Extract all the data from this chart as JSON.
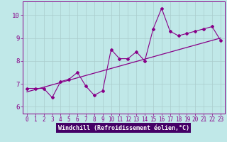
{
  "title": "",
  "xlabel": "Windchill (Refroidissement éolien,°C)",
  "ylabel": "",
  "background_color": "#c0e8e8",
  "axis_bg_color": "#c0e8e8",
  "bottom_bar_color": "#440066",
  "grid_color": "#aacccc",
  "line_color": "#880088",
  "x_data": [
    0,
    1,
    2,
    3,
    4,
    5,
    6,
    7,
    8,
    9,
    10,
    11,
    12,
    13,
    14,
    15,
    16,
    17,
    18,
    19,
    20,
    21,
    22,
    23
  ],
  "y_data": [
    6.8,
    6.8,
    6.8,
    6.4,
    7.1,
    7.2,
    7.5,
    6.9,
    6.5,
    6.7,
    8.5,
    8.1,
    8.1,
    8.4,
    8.0,
    9.4,
    10.3,
    9.3,
    9.1,
    9.2,
    9.3,
    9.4,
    9.5,
    8.9
  ],
  "trend_x": [
    0,
    23
  ],
  "trend_y": [
    6.65,
    9.0
  ],
  "xlim": [
    -0.5,
    23.5
  ],
  "ylim": [
    5.7,
    10.6
  ],
  "yticks": [
    6,
    7,
    8,
    9,
    10
  ],
  "xticks": [
    0,
    1,
    2,
    3,
    4,
    5,
    6,
    7,
    8,
    9,
    10,
    11,
    12,
    13,
    14,
    15,
    16,
    17,
    18,
    19,
    20,
    21,
    22,
    23
  ],
  "font_color": "#880088",
  "xlabel_bar_color": "#440066",
  "tick_fontsize": 5.5,
  "xlabel_fontsize": 6.0,
  "ytick_fontsize": 6.5
}
